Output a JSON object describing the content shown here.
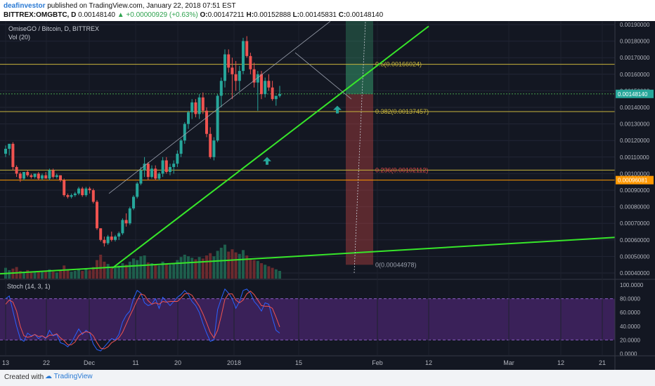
{
  "header": {
    "line1": {
      "author": "deafinvestor",
      "text": " published on TradingView.com, January 22, 2018 07:51 EST"
    },
    "line2": {
      "symbol": "BITTREX:OMGBTC, D",
      "price": "0.00148140",
      "change": "▲ +0.00000929 (+0.63%)",
      "o_label": "O:",
      "o": "0.00147211",
      "h_label": "H:",
      "h": "0.00152888",
      "l_label": "L:",
      "l": "0.00145831",
      "c_label": "C:",
      "c": "0.00148140"
    }
  },
  "footer": {
    "created_with": "Created with",
    "brand": "TradingView"
  },
  "chart_data": {
    "type": "candlestick",
    "title": "OmiseGO / Bitcoin, D, BITTREX",
    "volume_label": "Vol (20)",
    "stoch_label": "Stoch (14, 3, 1)",
    "price_axis_ticks": [
      "0.00190000",
      "0.00180000",
      "0.00170000",
      "0.00160000",
      "0.00150000",
      "0.00140000",
      "0.00130000",
      "0.00120000",
      "0.00110000",
      "0.00100000",
      "0.00090000",
      "0.00080000",
      "0.00070000",
      "0.00060000",
      "0.00050000",
      "0.00040000"
    ],
    "stoch_axis_ticks": [
      "100.0000",
      "80.0000",
      "60.0000",
      "40.0000",
      "20.0000",
      "0.0000"
    ],
    "x_ticks": [
      "13",
      "22",
      "Dec",
      "11",
      "20",
      "2018",
      "15",
      "Feb",
      "12",
      "Mar",
      "12",
      "21"
    ],
    "last_price_badge": "0.00148140",
    "level_badge": "0.00096081",
    "fib_labels": [
      "0.5(0.00166024)",
      "0.382(0.00137457)",
      "0.236(0.00102112)",
      "0(0.00044978)"
    ],
    "colors": {
      "bg": "#131722",
      "up": "#26a69a",
      "down": "#ef5350",
      "trend": "#37e62a",
      "fib": "#c8b53c",
      "level": "#ff9800",
      "stoch_k": "#2962ff",
      "stoch_d": "#ef5350"
    },
    "candles": [
      [
        0.00112,
        0.00117,
        0.0011,
        0.00115
      ],
      [
        0.00115,
        0.00118,
        0.00111,
        0.00118
      ],
      [
        0.00118,
        0.00119,
        0.00102,
        0.00104
      ],
      [
        0.00104,
        0.00105,
        0.00098,
        0.001
      ],
      [
        0.001,
        0.00101,
        0.00095,
        0.00097
      ],
      [
        0.00097,
        0.00101,
        0.00096,
        0.00101
      ],
      [
        0.00101,
        0.00102,
        0.00098,
        0.00099
      ],
      [
        0.00099,
        0.001,
        0.00097,
        0.00098
      ],
      [
        0.00098,
        0.001,
        0.00097,
        0.001
      ],
      [
        0.001,
        0.00101,
        0.00096,
        0.00097
      ],
      [
        0.00097,
        0.001,
        0.00096,
        0.00099
      ],
      [
        0.00099,
        0.00101,
        0.00097,
        0.00097
      ],
      [
        0.00097,
        0.00103,
        0.00096,
        0.00102
      ],
      [
        0.00102,
        0.00103,
        0.00097,
        0.00098
      ],
      [
        0.00098,
        0.001,
        0.00097,
        0.00099
      ],
      [
        0.00099,
        0.00099,
        0.00095,
        0.00096
      ],
      [
        0.00096,
        0.00097,
        0.00086,
        0.00087
      ],
      [
        0.00087,
        0.00088,
        0.00085,
        0.00086
      ],
      [
        0.00086,
        0.00088,
        0.00085,
        0.00087
      ],
      [
        0.00087,
        0.00089,
        0.00086,
        0.00088
      ],
      [
        0.00088,
        0.00092,
        0.00087,
        0.00091
      ],
      [
        0.00091,
        0.00092,
        0.00086,
        0.00087
      ],
      [
        0.00087,
        0.00092,
        0.00086,
        0.00091
      ],
      [
        0.00091,
        0.00092,
        0.00088,
        0.0009
      ],
      [
        0.0009,
        0.00091,
        0.00082,
        0.00083
      ],
      [
        0.00083,
        0.00084,
        0.00066,
        0.00067
      ],
      [
        0.00067,
        0.00067,
        0.00059,
        0.0006
      ],
      [
        0.0006,
        0.00062,
        0.00056,
        0.00058
      ],
      [
        0.00058,
        0.00063,
        0.00057,
        0.00062
      ],
      [
        0.00062,
        0.00065,
        0.00059,
        0.0006
      ],
      [
        0.0006,
        0.00063,
        0.00059,
        0.00062
      ],
      [
        0.00062,
        0.00065,
        0.0006,
        0.00064
      ],
      [
        0.00064,
        0.00073,
        0.00063,
        0.00072
      ],
      [
        0.00072,
        0.00076,
        0.00068,
        0.0007
      ],
      [
        0.0007,
        0.0008,
        0.00069,
        0.00079
      ],
      [
        0.00079,
        0.00087,
        0.00078,
        0.00086
      ],
      [
        0.00086,
        0.00095,
        0.00085,
        0.00094
      ],
      [
        0.00094,
        0.00104,
        0.00093,
        0.00102
      ],
      [
        0.00102,
        0.0011,
        0.00098,
        0.00106
      ],
      [
        0.00106,
        0.00107,
        0.00096,
        0.00098
      ],
      [
        0.00098,
        0.00105,
        0.00097,
        0.00103
      ],
      [
        0.00103,
        0.00105,
        0.00096,
        0.00097
      ],
      [
        0.00097,
        0.00101,
        0.00096,
        0.001
      ],
      [
        0.001,
        0.0011,
        0.00098,
        0.00108
      ],
      [
        0.00108,
        0.0011,
        0.001,
        0.00101
      ],
      [
        0.00101,
        0.00106,
        0.00099,
        0.00104
      ],
      [
        0.00104,
        0.00108,
        0.001,
        0.00106
      ],
      [
        0.00106,
        0.00114,
        0.00104,
        0.00112
      ],
      [
        0.00112,
        0.00121,
        0.0011,
        0.0012
      ],
      [
        0.0012,
        0.00131,
        0.00118,
        0.0013
      ],
      [
        0.0013,
        0.00138,
        0.00127,
        0.00137
      ],
      [
        0.00137,
        0.00145,
        0.00133,
        0.00143
      ],
      [
        0.00143,
        0.00145,
        0.00134,
        0.00136
      ],
      [
        0.00136,
        0.00148,
        0.00133,
        0.00146
      ],
      [
        0.00146,
        0.00149,
        0.00136,
        0.00138
      ],
      [
        0.00138,
        0.0014,
        0.00122,
        0.00124
      ],
      [
        0.00124,
        0.00128,
        0.00109,
        0.0011
      ],
      [
        0.0011,
        0.00122,
        0.00108,
        0.0012
      ],
      [
        0.0012,
        0.00148,
        0.00119,
        0.00147
      ],
      [
        0.00147,
        0.00158,
        0.0014,
        0.00156
      ],
      [
        0.00156,
        0.00175,
        0.00152,
        0.00172
      ],
      [
        0.00172,
        0.00175,
        0.00161,
        0.00164
      ],
      [
        0.00164,
        0.0017,
        0.00145,
        0.0016
      ],
      [
        0.0016,
        0.00168,
        0.0015,
        0.00156
      ],
      [
        0.00156,
        0.00165,
        0.0015,
        0.00162
      ],
      [
        0.00162,
        0.00182,
        0.0016,
        0.0018
      ],
      [
        0.0018,
        0.00183,
        0.0017,
        0.00171
      ],
      [
        0.00171,
        0.00173,
        0.0016,
        0.00163
      ],
      [
        0.00163,
        0.00167,
        0.00152,
        0.00155
      ],
      [
        0.00155,
        0.00162,
        0.00138,
        0.0016
      ],
      [
        0.0016,
        0.00162,
        0.00145,
        0.00148
      ],
      [
        0.00148,
        0.00158,
        0.00146,
        0.00156
      ],
      [
        0.00156,
        0.0016,
        0.0015,
        0.00152
      ],
      [
        0.00152,
        0.00156,
        0.00144,
        0.00145
      ],
      [
        0.00145,
        0.00147,
        0.00141,
        0.00147
      ],
      [
        0.00147,
        0.00153,
        0.00146,
        0.00148
      ]
    ],
    "volume": [
      28,
      22,
      26,
      30,
      20,
      18,
      22,
      16,
      18,
      20,
      17,
      19,
      24,
      18,
      16,
      20,
      34,
      22,
      18,
      20,
      24,
      20,
      26,
      22,
      30,
      48,
      62,
      44,
      38,
      30,
      28,
      34,
      40,
      36,
      44,
      52,
      48,
      58,
      60,
      42,
      40,
      36,
      34,
      44,
      38,
      36,
      40,
      48,
      56,
      62,
      58,
      54,
      50,
      56,
      52,
      60,
      66,
      58,
      72,
      80,
      88,
      70,
      76,
      68,
      64,
      74,
      60,
      52,
      48,
      46,
      40,
      36,
      32,
      28,
      24,
      20
    ],
    "stoch_k": [
      80,
      84,
      62,
      40,
      22,
      18,
      30,
      26,
      28,
      22,
      26,
      22,
      34,
      26,
      28,
      16,
      14,
      10,
      16,
      26,
      36,
      28,
      34,
      30,
      14,
      6,
      4,
      10,
      16,
      22,
      20,
      28,
      46,
      56,
      62,
      80,
      92,
      88,
      74,
      70,
      72,
      80,
      66,
      82,
      76,
      70,
      76,
      82,
      86,
      92,
      86,
      76,
      70,
      60,
      44,
      30,
      18,
      20,
      64,
      80,
      94,
      88,
      80,
      66,
      76,
      92,
      94,
      88,
      76,
      70,
      62,
      74,
      72,
      52,
      34,
      30
    ],
    "stoch_d": [
      72,
      78,
      75,
      62,
      40,
      26,
      24,
      25,
      28,
      25,
      26,
      23,
      27,
      27,
      29,
      23,
      19,
      13,
      13,
      17,
      26,
      30,
      32,
      31,
      26,
      16,
      8,
      7,
      10,
      16,
      19,
      23,
      31,
      43,
      55,
      66,
      78,
      87,
      85,
      77,
      72,
      74,
      72,
      76,
      75,
      76,
      76,
      76,
      81,
      87,
      88,
      85,
      77,
      69,
      58,
      45,
      31,
      23,
      34,
      55,
      79,
      87,
      87,
      78,
      74,
      78,
      87,
      91,
      86,
      78,
      70,
      69,
      69,
      66,
      53,
      39
    ]
  }
}
